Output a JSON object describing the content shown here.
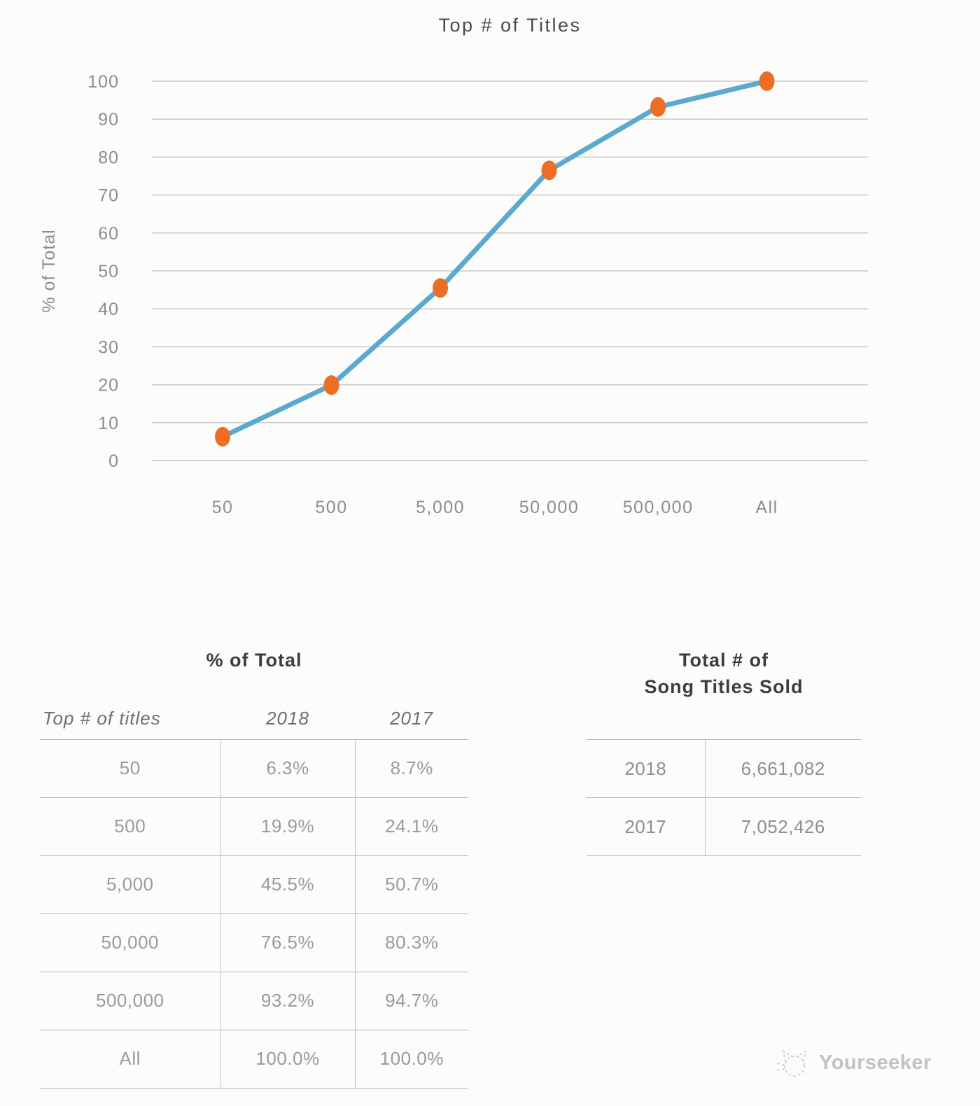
{
  "chart_data": {
    "type": "line",
    "title": "Top # of Titles",
    "xlabel": "",
    "ylabel": "% of Total",
    "categories": [
      "50",
      "500",
      "5,000",
      "50,000",
      "500,000",
      "All"
    ],
    "series": [
      {
        "name": "2018",
        "values": [
          6.3,
          19.9,
          45.5,
          76.5,
          93.2,
          100.0
        ]
      }
    ],
    "ylim": [
      0,
      100
    ],
    "ytick_step": 10,
    "grid": true,
    "legend_position": "none",
    "line_color": "#5ba9cf",
    "marker_color": "#ec6e24",
    "grid_color": "#c8c8c8",
    "axis_text_color": "#8d8d8d",
    "title_color": "#4a4a4a"
  },
  "tables": {
    "percent_of_total": {
      "title": "% of Total",
      "columns": [
        "Top # of titles",
        "2018",
        "2017"
      ],
      "rows": [
        {
          "label": "50",
          "y2018": "6.3%",
          "y2017": "8.7%"
        },
        {
          "label": "500",
          "y2018": "19.9%",
          "y2017": "24.1%"
        },
        {
          "label": "5,000",
          "y2018": "45.5%",
          "y2017": "50.7%"
        },
        {
          "label": "50,000",
          "y2018": "76.5%",
          "y2017": "80.3%"
        },
        {
          "label": "500,000",
          "y2018": "93.2%",
          "y2017": "94.7%"
        },
        {
          "label": "All",
          "y2018": "100.0%",
          "y2017": "100.0%"
        }
      ]
    },
    "titles_sold": {
      "title": "Total # of\nSong Titles Sold",
      "rows": [
        {
          "year": "2018",
          "total": "6,661,082"
        },
        {
          "year": "2017",
          "total": "7,052,426"
        }
      ]
    }
  },
  "watermark": {
    "label": "Yourseeker",
    "icon": "cat-sketch-icon",
    "color": "#c2c2c2"
  }
}
